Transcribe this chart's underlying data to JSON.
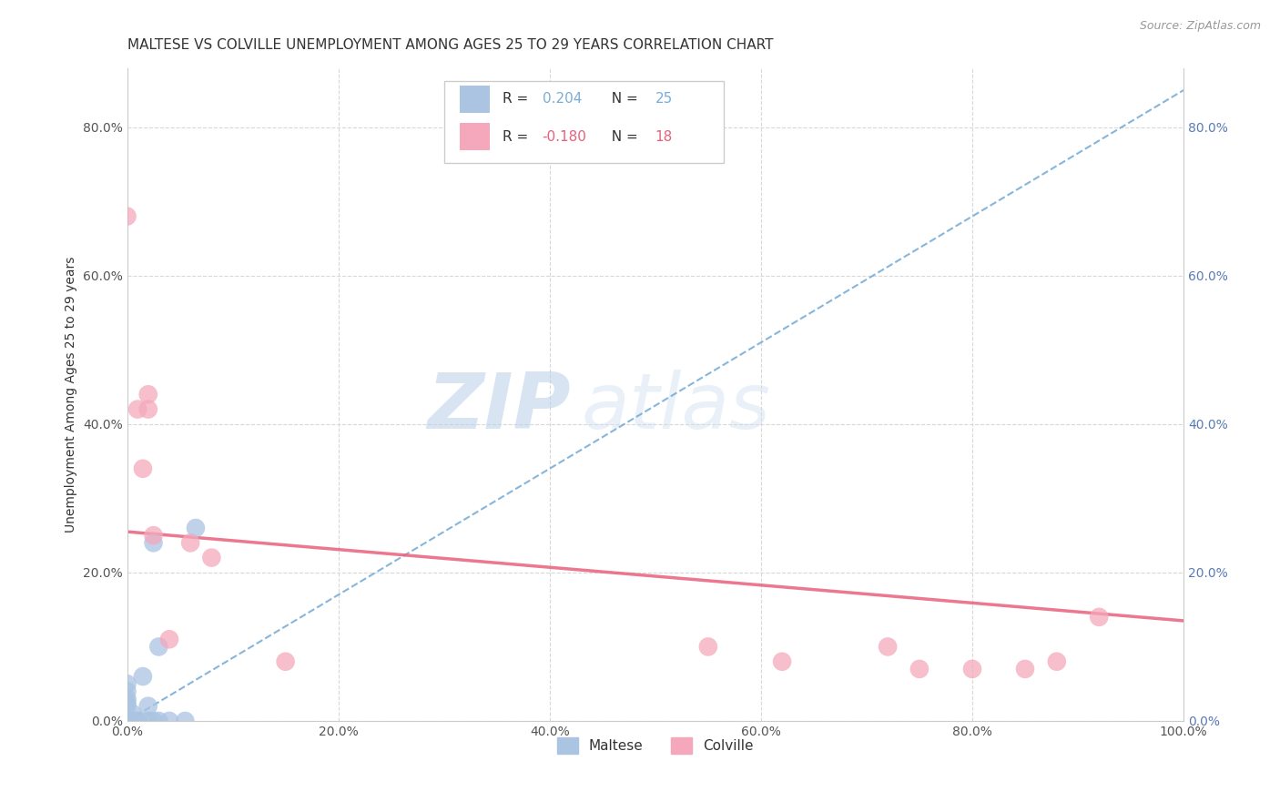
{
  "title": "MALTESE VS COLVILLE UNEMPLOYMENT AMONG AGES 25 TO 29 YEARS CORRELATION CHART",
  "source": "Source: ZipAtlas.com",
  "ylabel": "Unemployment Among Ages 25 to 29 years",
  "xlim": [
    0,
    1.0
  ],
  "ylim": [
    0,
    0.88
  ],
  "xticks": [
    0.0,
    0.2,
    0.4,
    0.6,
    0.8,
    1.0
  ],
  "yticks": [
    0.0,
    0.2,
    0.4,
    0.6,
    0.8
  ],
  "maltese_R": 0.204,
  "maltese_N": 25,
  "colville_R": -0.18,
  "colville_N": 18,
  "maltese_color": "#aac4e2",
  "colville_color": "#f5a8bc",
  "maltese_line_color": "#7aaed6",
  "colville_line_color": "#e8607a",
  "background_color": "#ffffff",
  "grid_color": "#d8d8d8",
  "watermark_zip": "ZIP",
  "watermark_atlas": "atlas",
  "maltese_x": [
    0.0,
    0.0,
    0.0,
    0.0,
    0.0,
    0.0,
    0.0,
    0.0,
    0.0,
    0.0,
    0.0,
    0.005,
    0.005,
    0.01,
    0.01,
    0.015,
    0.02,
    0.02,
    0.025,
    0.025,
    0.03,
    0.03,
    0.04,
    0.055,
    0.065
  ],
  "maltese_y": [
    0.0,
    0.0,
    0.0,
    0.0,
    0.0,
    0.0,
    0.02,
    0.025,
    0.03,
    0.04,
    0.05,
    0.0,
    0.01,
    0.0,
    0.0,
    0.06,
    0.0,
    0.02,
    0.0,
    0.24,
    0.0,
    0.1,
    0.0,
    0.0,
    0.26
  ],
  "colville_x": [
    0.0,
    0.01,
    0.015,
    0.02,
    0.02,
    0.025,
    0.04,
    0.06,
    0.08,
    0.15,
    0.55,
    0.62,
    0.72,
    0.75,
    0.8,
    0.85,
    0.88,
    0.92
  ],
  "colville_y": [
    0.68,
    0.42,
    0.34,
    0.42,
    0.44,
    0.25,
    0.11,
    0.24,
    0.22,
    0.08,
    0.1,
    0.08,
    0.1,
    0.07,
    0.07,
    0.07,
    0.08,
    0.14
  ],
  "blue_trend_x0": 0.0,
  "blue_trend_y0": 0.0,
  "blue_trend_x1": 1.0,
  "blue_trend_y1": 0.85,
  "pink_trend_x0": 0.0,
  "pink_trend_y0": 0.255,
  "pink_trend_x1": 1.0,
  "pink_trend_y1": 0.135,
  "title_fontsize": 11,
  "axis_label_fontsize": 10,
  "tick_fontsize": 10,
  "legend_fontsize": 11,
  "source_fontsize": 9,
  "right_ytick_color": "#5a7ab8",
  "left_ytick_color": "#555555",
  "xtick_color": "#555555"
}
